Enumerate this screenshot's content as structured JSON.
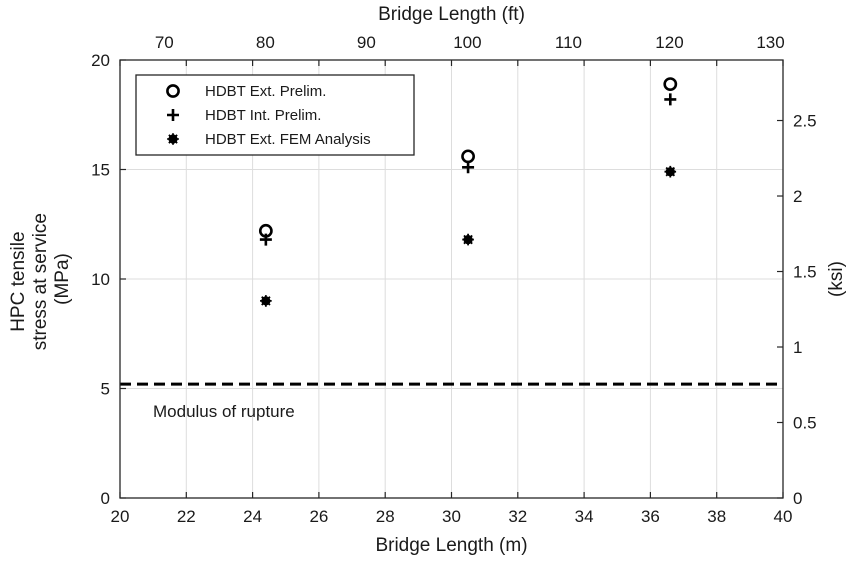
{
  "chart_data": {
    "type": "scatter",
    "title": "",
    "xlabel": "Bridge Length (m)",
    "ylabel": "HPC tensile stress at service (MPa)",
    "ylabel_lines": [
      "HPC tensile",
      "stress at service",
      "(MPa)"
    ],
    "xlim": [
      20,
      40
    ],
    "ylim": [
      0,
      20
    ],
    "xticks": [
      20,
      22,
      24,
      26,
      28,
      30,
      32,
      34,
      36,
      38,
      40
    ],
    "yticks": [
      0,
      5,
      10,
      15,
      20
    ],
    "grid": true,
    "x2label": "Bridge Length (ft)",
    "x2lim": [
      65.6168,
      131.2336
    ],
    "x2ticks": [
      70,
      80,
      90,
      100,
      110,
      120,
      130
    ],
    "y2label": "(ksi)",
    "y2lim": [
      0,
      2.9008
    ],
    "y2ticks": [
      0,
      0.5,
      1,
      1.5,
      2,
      2.5
    ],
    "legend_position": "top-left",
    "series": [
      {
        "name": "HDBT Ext. Prelim.",
        "marker": "circle-open",
        "x": [
          24.4,
          30.5,
          36.6
        ],
        "y": [
          12.2,
          15.6,
          18.9
        ]
      },
      {
        "name": "HDBT Int. Prelim.",
        "marker": "plus",
        "x": [
          24.4,
          30.5,
          36.6
        ],
        "y": [
          11.8,
          15.1,
          18.2
        ]
      },
      {
        "name": "HDBT Ext. FEM Analysis",
        "marker": "asterisk",
        "x": [
          24.4,
          30.5,
          36.6
        ],
        "y": [
          9.0,
          11.8,
          14.9
        ]
      }
    ],
    "reference_lines": [
      {
        "label": "Modulus of rupture",
        "y": 5.2,
        "style": "dashed"
      }
    ],
    "colors": {
      "marker": "#000000",
      "grid": "#dddddd",
      "axis": "#262626",
      "text": "#1a1a1a"
    }
  }
}
